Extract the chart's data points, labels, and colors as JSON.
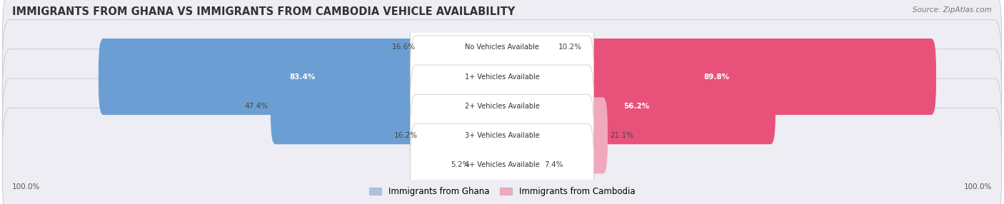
{
  "title": "IMMIGRANTS FROM GHANA VS IMMIGRANTS FROM CAMBODIA VEHICLE AVAILABILITY",
  "source": "Source: ZipAtlas.com",
  "categories": [
    "No Vehicles Available",
    "1+ Vehicles Available",
    "2+ Vehicles Available",
    "3+ Vehicles Available",
    "4+ Vehicles Available"
  ],
  "ghana_values": [
    16.6,
    83.4,
    47.4,
    16.2,
    5.2
  ],
  "cambodia_values": [
    10.2,
    89.8,
    56.2,
    21.1,
    7.4
  ],
  "ghana_color_light": "#a8c4e0",
  "ghana_color_dark": "#6b9fd4",
  "cambodia_color_light": "#f2a8bc",
  "cambodia_color_dark": "#e8527a",
  "row_bg_color": "#ededf3",
  "title_fontsize": 10.5,
  "max_value": 100.0,
  "legend_ghana": "Immigrants from Ghana",
  "legend_cambodia": "Immigrants from Cambodia"
}
